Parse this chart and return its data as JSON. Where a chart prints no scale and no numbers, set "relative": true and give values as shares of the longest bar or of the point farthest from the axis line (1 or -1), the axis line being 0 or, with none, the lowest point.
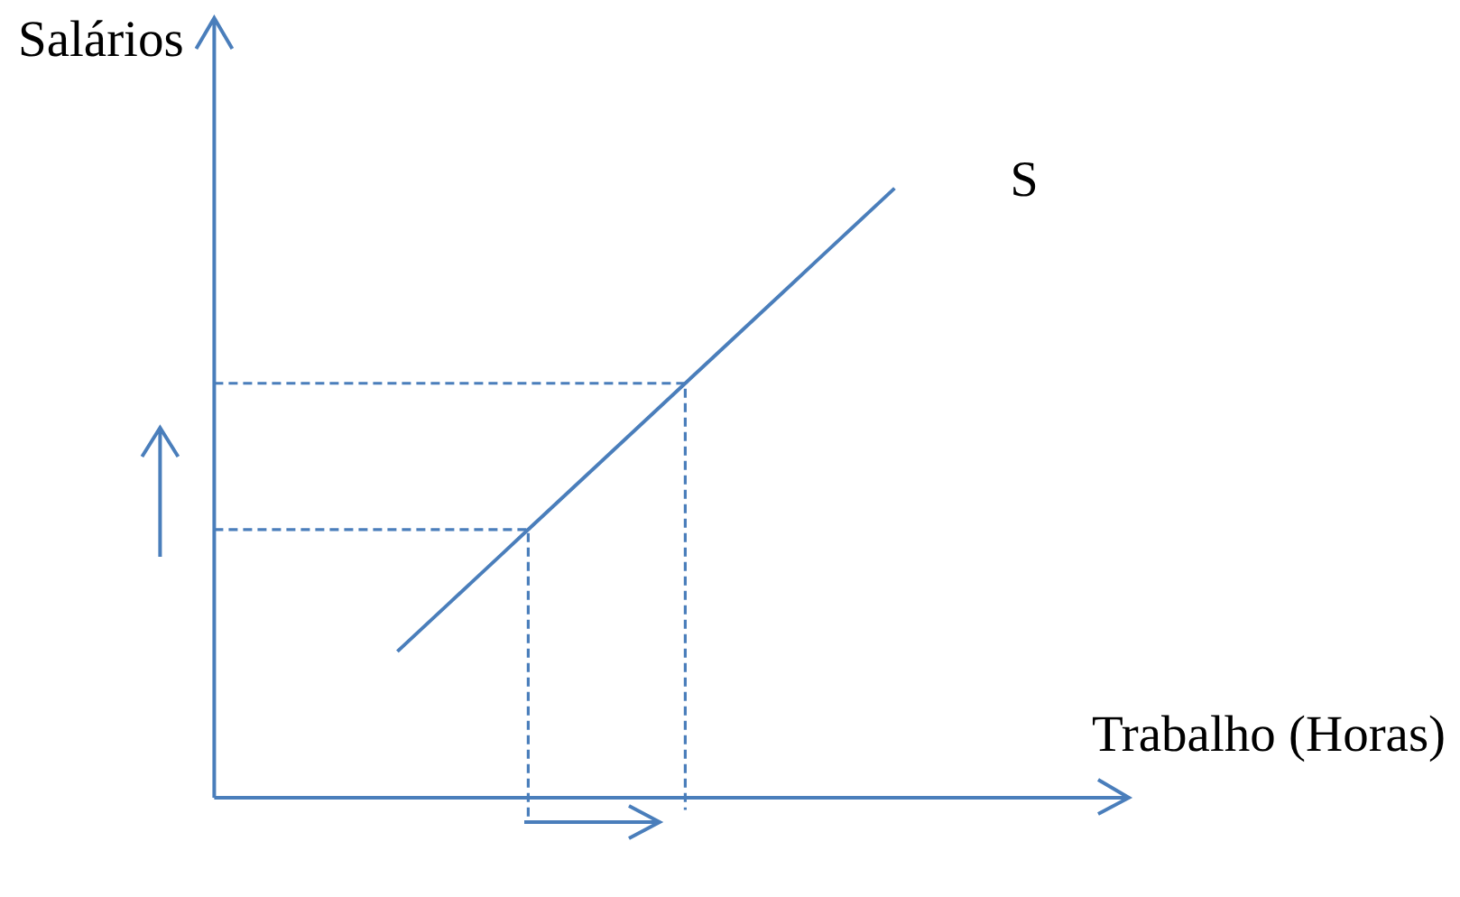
{
  "chart_data": {
    "type": "line",
    "xlabel": "Trabalho (Horas)",
    "ylabel": "Salários",
    "relative": true,
    "categories": [
      null,
      null,
      null,
      null,
      null,
      null,
      null,
      null,
      null,
      null,
      null,
      null,
      null,
      null,
      null,
      null,
      null,
      null,
      null,
      null,
      null,
      null,
      null,
      null,
      null,
      null,
      null
    ],
    "series": [
      {
        "name": "S",
        "color": "#4a7ebb",
        "line_style": "solid",
        "values": [
          null,
          null,
          null,
          null,
          null,
          null,
          null,
          0.24,
          0.28,
          0.32,
          0.36,
          0.4,
          0.44,
          0.48,
          0.52,
          0.56,
          0.6,
          0.64,
          0.68,
          0.72,
          0.76,
          0.8,
          0.84,
          0.88,
          0.92,
          0.96,
          1
        ]
      },
      {
        "type": "step",
        "color": "#4a7ebb",
        "line_style": "dashed",
        "values": [
          0.44,
          0.44,
          0.44,
          0.44,
          0.44,
          0.44,
          0.44,
          0.44,
          0.44,
          0.44,
          0.44,
          0.44,
          -0.04,
          null,
          null,
          null,
          null,
          null,
          null,
          null,
          null,
          null,
          null,
          null,
          null,
          null,
          null
        ]
      },
      {
        "type": "step",
        "color": "#4a7ebb",
        "line_style": "dashed",
        "values": [
          0.68,
          0.68,
          0.68,
          0.68,
          0.68,
          0.68,
          0.68,
          0.68,
          0.68,
          0.68,
          0.68,
          0.68,
          0.68,
          0.68,
          0.68,
          0.68,
          0.68,
          0.68,
          -0.02,
          null,
          null,
          null,
          null,
          null,
          null,
          null,
          null
        ]
      }
    ],
    "ref_lines": [
      {
        "axis": "y",
        "value": 0,
        "color": "#4a7ebb"
      }
    ]
  }
}
